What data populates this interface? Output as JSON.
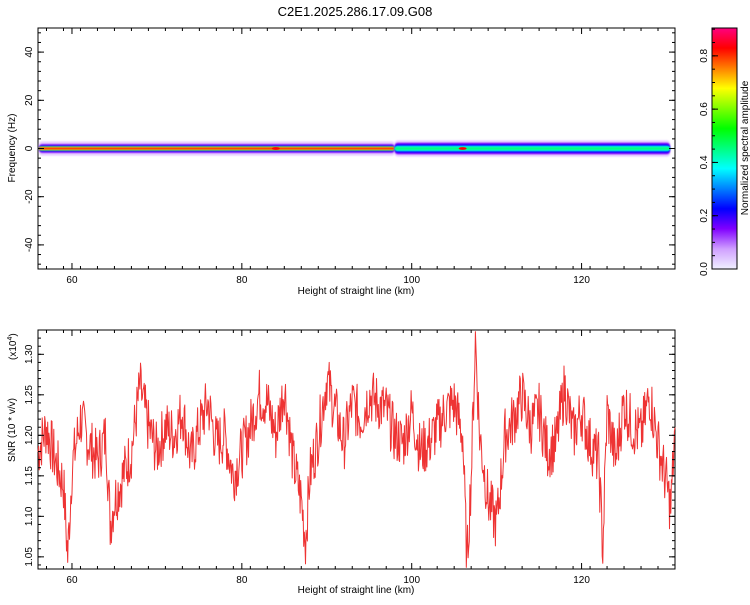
{
  "title": "C2E1.2025.286.17.09.G08",
  "colors": {
    "snr_line": "#ee3333",
    "frame": "#000000",
    "spectrum_band": [
      "#ff0000",
      "#ffff00",
      "#00ff80",
      "#00ffff",
      "#0000ff",
      "#8000ff",
      "#e6ccff"
    ]
  },
  "chart_data": [
    {
      "type": "heatmap",
      "name": "spectrogram",
      "title": "C2E1.2025.286.17.09.G08",
      "xlabel": "Height of straight line (km)",
      "ylabel": "Frequency (Hz)",
      "xlim": [
        56,
        131
      ],
      "ylim": [
        -50,
        50
      ],
      "x_ticks": [
        60,
        80,
        100,
        120
      ],
      "y_ticks": [
        -40,
        -20,
        0,
        20,
        40
      ],
      "grid": false,
      "band_center_hz": 0,
      "transition_km": 98,
      "segments": [
        {
          "x_range": [
            56,
            98
          ],
          "peak_amplitude": 0.9,
          "half_width_hz": 2
        },
        {
          "x_range": [
            98,
            131
          ],
          "peak_amplitude": 0.45,
          "half_width_hz": 3
        }
      ],
      "hotspots_km": [
        84,
        106
      ]
    },
    {
      "type": "colorbar",
      "name": "colorbar",
      "label": "Normalized spectral amplitude",
      "range": [
        0.0,
        0.9
      ],
      "ticks": [
        0.0,
        0.2,
        0.4,
        0.6,
        0.8
      ],
      "colormap": [
        "#f0f0ff",
        "#d0a0ff",
        "#8000ff",
        "#0000ff",
        "#0080ff",
        "#00ffff",
        "#00ff80",
        "#00ff00",
        "#80ff00",
        "#ffff00",
        "#ff8000",
        "#ff0000",
        "#ff0080"
      ]
    },
    {
      "type": "line",
      "name": "snr",
      "xlabel": "Height of straight line (km)",
      "ylabel": "SNR (10 * v/v)",
      "exponent_label": "(x10",
      "exponent_power": "4",
      "exponent_close": ")",
      "xlim": [
        56,
        131
      ],
      "ylim": [
        1.035,
        1.33
      ],
      "x_ticks": [
        60,
        80,
        100,
        120
      ],
      "y_ticks": [
        1.05,
        1.1,
        1.15,
        1.2,
        1.25,
        1.3
      ],
      "grid": false,
      "series": [
        {
          "x": [
            56,
            57,
            58,
            59,
            59.5,
            60,
            61,
            62,
            63,
            64,
            64.5,
            65,
            66,
            67,
            68,
            69,
            70,
            71,
            72,
            73,
            74,
            75,
            76,
            77,
            78,
            79,
            80,
            81,
            82,
            83,
            84,
            85,
            86,
            87,
            87.5,
            88,
            89,
            90,
            91,
            92,
            93,
            94,
            95,
            96,
            97,
            98,
            99,
            100,
            101,
            102,
            103,
            104,
            105,
            106,
            106.5,
            107,
            107.5,
            108,
            109,
            110,
            111,
            112,
            113,
            114,
            115,
            116,
            117,
            118,
            119,
            120,
            121,
            122,
            122.5,
            123,
            124,
            125,
            126,
            127,
            128,
            129,
            130,
            130.5,
            131
          ],
          "y": [
            1.18,
            1.21,
            1.17,
            1.14,
            1.05,
            1.16,
            1.22,
            1.19,
            1.17,
            1.2,
            1.09,
            1.12,
            1.15,
            1.18,
            1.26,
            1.21,
            1.18,
            1.21,
            1.2,
            1.23,
            1.17,
            1.21,
            1.24,
            1.19,
            1.2,
            1.15,
            1.18,
            1.21,
            1.25,
            1.24,
            1.2,
            1.26,
            1.17,
            1.12,
            1.07,
            1.15,
            1.2,
            1.27,
            1.23,
            1.19,
            1.24,
            1.22,
            1.25,
            1.24,
            1.23,
            1.2,
            1.19,
            1.23,
            1.18,
            1.19,
            1.21,
            1.23,
            1.24,
            1.2,
            1.04,
            1.15,
            1.32,
            1.2,
            1.12,
            1.09,
            1.2,
            1.22,
            1.25,
            1.21,
            1.23,
            1.18,
            1.19,
            1.26,
            1.2,
            1.23,
            1.19,
            1.17,
            1.06,
            1.23,
            1.17,
            1.24,
            1.21,
            1.2,
            1.25,
            1.19,
            1.14,
            1.11,
            1.21
          ]
        }
      ]
    }
  ]
}
